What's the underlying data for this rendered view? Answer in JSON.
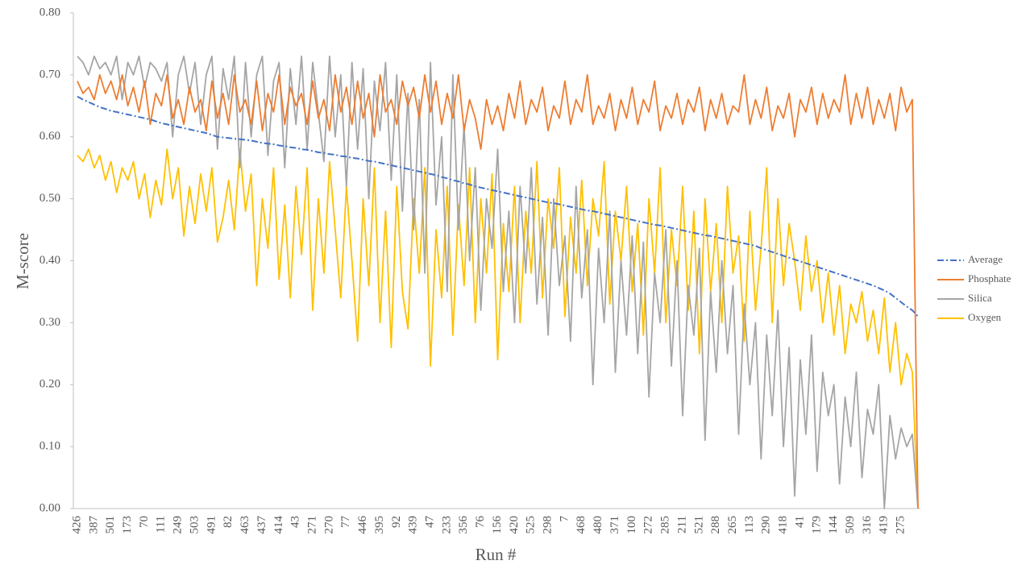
{
  "chart_data": {
    "type": "line",
    "x_label": "Run #",
    "y_label": "M-score",
    "legend": "right",
    "categories": [
      "426",
      null,
      null,
      "387",
      null,
      null,
      "501",
      null,
      null,
      "173",
      null,
      null,
      "70",
      null,
      null,
      "111",
      null,
      null,
      "249",
      null,
      null,
      "503",
      null,
      null,
      "491",
      null,
      null,
      "82",
      null,
      null,
      "463",
      null,
      null,
      "437",
      null,
      null,
      "414",
      null,
      null,
      "43",
      null,
      null,
      "271",
      null,
      null,
      "270",
      null,
      null,
      "77",
      null,
      null,
      "446",
      null,
      null,
      "395",
      null,
      null,
      "92",
      null,
      null,
      "439",
      null,
      null,
      "47",
      null,
      null,
      "233",
      null,
      null,
      "356",
      null,
      null,
      "76",
      null,
      null,
      "156",
      null,
      null,
      "420",
      null,
      null,
      "525",
      null,
      null,
      "298",
      null,
      null,
      "7",
      null,
      null,
      "468",
      null,
      null,
      "480",
      null,
      null,
      "371",
      null,
      null,
      "100",
      null,
      null,
      "272",
      null,
      null,
      "285",
      null,
      null,
      "211",
      null,
      null,
      "521",
      null,
      null,
      "288",
      null,
      null,
      "265",
      null,
      null,
      "113",
      null,
      null,
      "290",
      null,
      null,
      "418",
      null,
      null,
      "41",
      null,
      null,
      "179",
      null,
      null,
      "144",
      null,
      null,
      "509",
      null,
      null,
      "316",
      null,
      null,
      "419",
      null,
      null,
      "275",
      null,
      null,
      null
    ],
    "series": [
      {
        "name": "Average",
        "color": "#4472c4",
        "dash": "dashdot",
        "values": [
          0.665,
          0.66,
          0.656,
          0.652,
          0.648,
          0.645,
          0.642,
          0.64,
          0.638,
          0.636,
          0.634,
          0.632,
          0.63,
          0.628,
          0.625,
          0.622,
          0.62,
          0.618,
          0.616,
          0.614,
          0.612,
          0.61,
          0.608,
          0.606,
          0.603,
          0.6,
          0.599,
          0.598,
          0.597,
          0.596,
          0.595,
          0.594,
          0.592,
          0.59,
          0.589,
          0.588,
          0.586,
          0.585,
          0.583,
          0.582,
          0.58,
          0.579,
          0.577,
          0.575,
          0.574,
          0.572,
          0.571,
          0.569,
          0.568,
          0.566,
          0.565,
          0.563,
          0.561,
          0.56,
          0.558,
          0.556,
          0.554,
          0.552,
          0.55,
          0.548,
          0.546,
          0.544,
          0.542,
          0.54,
          0.538,
          0.535,
          0.533,
          0.53,
          0.528,
          0.525,
          0.523,
          0.52,
          0.518,
          0.516,
          0.514,
          0.512,
          0.51,
          0.508,
          0.506,
          0.504,
          0.502,
          0.5,
          0.498,
          0.496,
          0.494,
          0.493,
          0.491,
          0.489,
          0.487,
          0.485,
          0.483,
          0.481,
          0.48,
          0.478,
          0.476,
          0.474,
          0.472,
          0.47,
          0.468,
          0.466,
          0.464,
          0.462,
          0.46,
          0.458,
          0.457,
          0.455,
          0.453,
          0.451,
          0.449,
          0.447,
          0.445,
          0.443,
          0.441,
          0.44,
          0.438,
          0.436,
          0.434,
          0.432,
          0.43,
          0.428,
          0.426,
          0.424,
          0.42,
          0.417,
          0.414,
          0.411,
          0.408,
          0.405,
          0.402,
          0.399,
          0.396,
          0.393,
          0.39,
          0.387,
          0.384,
          0.381,
          0.378,
          0.375,
          0.372,
          0.369,
          0.366,
          0.363,
          0.36,
          0.356,
          0.352,
          0.347,
          0.34,
          0.333,
          0.326,
          0.32,
          0.31
        ]
      },
      {
        "name": "Phosphate",
        "color": "#ed7d31",
        "values": [
          0.69,
          0.67,
          0.68,
          0.66,
          0.7,
          0.67,
          0.69,
          0.66,
          0.7,
          0.65,
          0.68,
          0.64,
          0.69,
          0.62,
          0.67,
          0.65,
          0.7,
          0.63,
          0.66,
          0.62,
          0.68,
          0.64,
          0.66,
          0.61,
          0.69,
          0.63,
          0.67,
          0.62,
          0.7,
          0.64,
          0.66,
          0.62,
          0.69,
          0.61,
          0.67,
          0.64,
          0.7,
          0.62,
          0.68,
          0.65,
          0.67,
          0.62,
          0.69,
          0.63,
          0.66,
          0.61,
          0.7,
          0.64,
          0.68,
          0.62,
          0.69,
          0.63,
          0.67,
          0.6,
          0.7,
          0.64,
          0.66,
          0.62,
          0.69,
          0.65,
          0.68,
          0.63,
          0.7,
          0.64,
          0.69,
          0.62,
          0.67,
          0.63,
          0.7,
          0.61,
          0.66,
          0.63,
          0.58,
          0.66,
          0.62,
          0.65,
          0.61,
          0.67,
          0.63,
          0.69,
          0.62,
          0.66,
          0.64,
          0.68,
          0.61,
          0.65,
          0.63,
          0.69,
          0.62,
          0.66,
          0.64,
          0.7,
          0.62,
          0.65,
          0.63,
          0.67,
          0.61,
          0.66,
          0.63,
          0.68,
          0.62,
          0.66,
          0.64,
          0.69,
          0.61,
          0.65,
          0.63,
          0.67,
          0.62,
          0.66,
          0.64,
          0.68,
          0.61,
          0.66,
          0.63,
          0.67,
          0.62,
          0.65,
          0.64,
          0.7,
          0.62,
          0.66,
          0.63,
          0.68,
          0.61,
          0.65,
          0.63,
          0.67,
          0.6,
          0.66,
          0.64,
          0.68,
          0.62,
          0.67,
          0.63,
          0.66,
          0.64,
          0.7,
          0.62,
          0.67,
          0.63,
          0.68,
          0.62,
          0.66,
          0.63,
          0.67,
          0.61,
          0.68,
          0.64,
          0.66,
          0.0
        ]
      },
      {
        "name": "Silica",
        "color": "#a5a5a5",
        "values": [
          0.73,
          0.72,
          0.7,
          0.73,
          0.71,
          0.72,
          0.7,
          0.73,
          0.66,
          0.72,
          0.7,
          0.73,
          0.68,
          0.72,
          0.71,
          0.69,
          0.72,
          0.6,
          0.7,
          0.73,
          0.67,
          0.72,
          0.62,
          0.7,
          0.73,
          0.58,
          0.71,
          0.66,
          0.73,
          0.55,
          0.72,
          0.6,
          0.7,
          0.73,
          0.57,
          0.69,
          0.72,
          0.55,
          0.71,
          0.62,
          0.73,
          0.58,
          0.72,
          0.64,
          0.56,
          0.73,
          0.6,
          0.7,
          0.52,
          0.72,
          0.58,
          0.71,
          0.5,
          0.69,
          0.61,
          0.72,
          0.53,
          0.7,
          0.48,
          0.67,
          0.45,
          0.66,
          0.38,
          0.72,
          0.49,
          0.6,
          0.35,
          0.7,
          0.45,
          0.62,
          0.4,
          0.55,
          0.32,
          0.5,
          0.42,
          0.58,
          0.35,
          0.48,
          0.3,
          0.52,
          0.38,
          0.55,
          0.33,
          0.47,
          0.28,
          0.5,
          0.36,
          0.44,
          0.27,
          0.52,
          0.34,
          0.45,
          0.2,
          0.42,
          0.3,
          0.48,
          0.22,
          0.4,
          0.28,
          0.44,
          0.25,
          0.43,
          0.18,
          0.38,
          0.3,
          0.45,
          0.23,
          0.4,
          0.15,
          0.36,
          0.28,
          0.42,
          0.11,
          0.35,
          0.22,
          0.4,
          0.25,
          0.36,
          0.12,
          0.33,
          0.2,
          0.3,
          0.08,
          0.28,
          0.15,
          0.32,
          0.1,
          0.26,
          0.02,
          0.24,
          0.12,
          0.28,
          0.06,
          0.22,
          0.15,
          0.2,
          0.04,
          0.18,
          0.1,
          0.22,
          0.05,
          0.16,
          0.12,
          0.2,
          0.0,
          0.15,
          0.08,
          0.13,
          0.1,
          0.12,
          0.0
        ]
      },
      {
        "name": "Oxygen",
        "color": "#ffc000",
        "values": [
          0.57,
          0.56,
          0.58,
          0.55,
          0.57,
          0.53,
          0.56,
          0.51,
          0.55,
          0.53,
          0.56,
          0.5,
          0.54,
          0.47,
          0.53,
          0.49,
          0.58,
          0.5,
          0.55,
          0.44,
          0.52,
          0.46,
          0.54,
          0.48,
          0.55,
          0.43,
          0.47,
          0.53,
          0.45,
          0.58,
          0.48,
          0.54,
          0.36,
          0.5,
          0.42,
          0.55,
          0.37,
          0.49,
          0.34,
          0.52,
          0.41,
          0.55,
          0.32,
          0.5,
          0.38,
          0.56,
          0.45,
          0.34,
          0.52,
          0.4,
          0.27,
          0.5,
          0.36,
          0.55,
          0.3,
          0.48,
          0.26,
          0.52,
          0.35,
          0.29,
          0.5,
          0.38,
          0.55,
          0.23,
          0.45,
          0.34,
          0.52,
          0.28,
          0.49,
          0.36,
          0.55,
          0.3,
          0.5,
          0.38,
          0.54,
          0.24,
          0.46,
          0.35,
          0.52,
          0.3,
          0.48,
          0.38,
          0.56,
          0.34,
          0.5,
          0.42,
          0.55,
          0.31,
          0.47,
          0.38,
          0.53,
          0.36,
          0.5,
          0.44,
          0.56,
          0.33,
          0.48,
          0.4,
          0.52,
          0.35,
          0.46,
          0.28,
          0.5,
          0.38,
          0.55,
          0.3,
          0.45,
          0.36,
          0.52,
          0.32,
          0.48,
          0.25,
          0.5,
          0.35,
          0.46,
          0.3,
          0.52,
          0.38,
          0.44,
          0.27,
          0.48,
          0.32,
          0.42,
          0.55,
          0.3,
          0.5,
          0.36,
          0.46,
          0.4,
          0.32,
          0.44,
          0.35,
          0.4,
          0.3,
          0.38,
          0.28,
          0.36,
          0.25,
          0.33,
          0.3,
          0.35,
          0.27,
          0.32,
          0.25,
          0.34,
          0.22,
          0.3,
          0.2,
          0.25,
          0.22,
          0.0
        ]
      }
    ],
    "ylim": [
      0,
      0.8
    ],
    "yticks": [
      {
        "value": 0,
        "label": "0.00"
      },
      {
        "value": 0.1,
        "label": "0.10"
      },
      {
        "value": 0.2,
        "label": "0.20"
      },
      {
        "value": 0.3,
        "label": "0.30"
      },
      {
        "value": 0.4,
        "label": "0.40"
      },
      {
        "value": 0.5,
        "label": "0.50"
      },
      {
        "value": 0.6,
        "label": "0.60"
      },
      {
        "value": 0.7,
        "label": "0.70"
      },
      {
        "value": 0.8,
        "label": "0.80"
      }
    ]
  }
}
